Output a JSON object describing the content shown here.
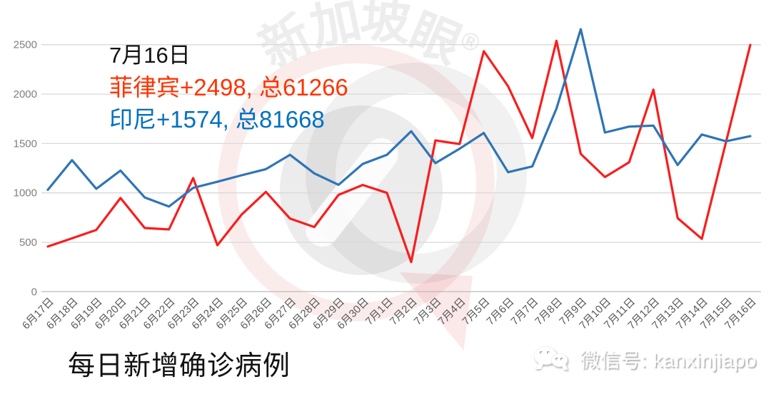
{
  "watermark": {
    "arc_text": "新加坡眼",
    "registered_mark": "®"
  },
  "annotation": {
    "date": "7月16日",
    "philippines": "菲律宾+2498, 总61266",
    "indonesia": "印尼+1574, 总81668",
    "philippines_color": "#FF3300",
    "indonesia_color": "#0070C0"
  },
  "footer": {
    "title": "每日新增确诊病例",
    "wechat_label": "微信号: kanxinjiapo"
  },
  "chart_data": {
    "type": "line",
    "title": "每日新增确诊病例",
    "categories": [
      "6月17日",
      "6月18日",
      "6月19日",
      "6月20日",
      "6月21日",
      "6月22日",
      "6月23日",
      "6月24日",
      "6月25日",
      "6月26日",
      "6月27日",
      "6月28日",
      "6月29日",
      "6月30日",
      "7月1日",
      "7月2日",
      "7月3日",
      "7月4日",
      "7月5日",
      "7月6日",
      "7月7日",
      "7月8日",
      "7月9日",
      "7月10日",
      "7月11日",
      "7月12日",
      "7月13日",
      "7月14日",
      "7月15日",
      "7月16日"
    ],
    "series": [
      {
        "name": "菲律宾",
        "color": "#F81E1E",
        "latest_new": 2498,
        "latest_total": 61266,
        "values": [
          457,
          540,
          625,
          948,
          645,
          630,
          1150,
          470,
          780,
          1010,
          740,
          655,
          980,
          1080,
          1000,
          300,
          1531,
          1494,
          2434,
          2080,
          1555,
          2539,
          1395,
          1160,
          1310,
          2045,
          745,
          535,
          1515,
          2498
        ]
      },
      {
        "name": "印尼",
        "color": "#2E75B6",
        "latest_new": 1574,
        "latest_total": 81668,
        "values": [
          1031,
          1331,
          1041,
          1226,
          954,
          862,
          1051,
          1113,
          1178,
          1240,
          1385,
          1198,
          1082,
          1293,
          1385,
          1624,
          1301,
          1447,
          1607,
          1209,
          1268,
          1853,
          2657,
          1611,
          1671,
          1681,
          1282,
          1591,
          1522,
          1574
        ]
      }
    ],
    "ylim": [
      0,
      2500
    ],
    "yticks": [
      0,
      500,
      1000,
      1500,
      2000,
      2500
    ],
    "grid": true,
    "legend_position": "none",
    "x_tick_rotation": 45
  }
}
